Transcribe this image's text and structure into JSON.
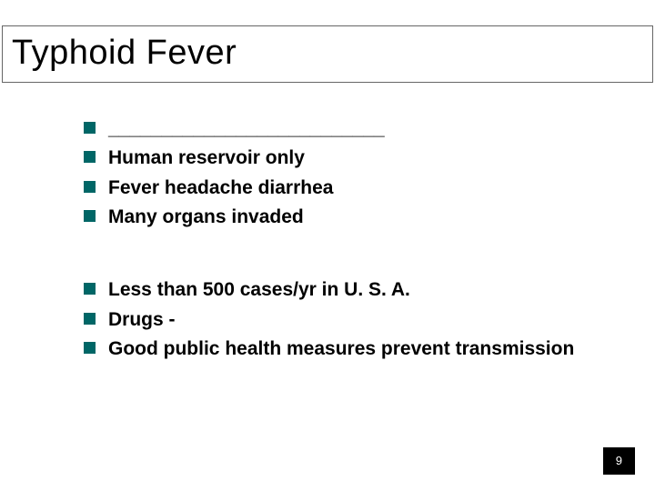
{
  "title": "Typhoid Fever",
  "bullet_color": "#006666",
  "background_color": "#ffffff",
  "title_fontsize": 38,
  "body_fontsize": 21,
  "groups": [
    {
      "items": [
        "__________________________",
        "Human reservoir only",
        "Fever headache diarrhea",
        "Many organs invaded"
      ]
    },
    {
      "items": [
        "Less than 500 cases/yr in U. S. A.",
        "Drugs -",
        "Good public health measures prevent transmission"
      ]
    }
  ],
  "page_number": "9"
}
